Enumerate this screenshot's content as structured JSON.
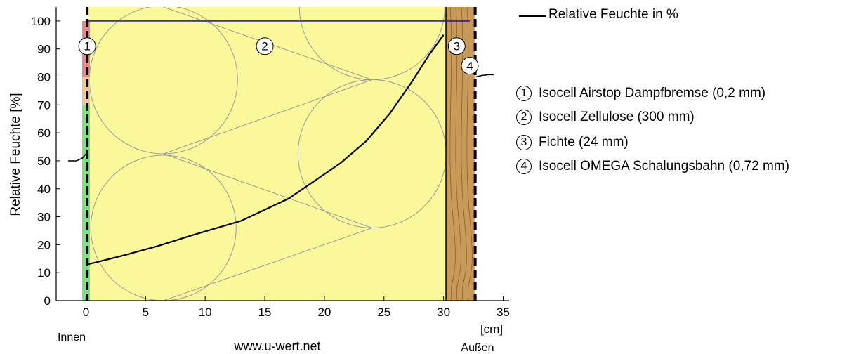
{
  "chart_data": {
    "type": "line",
    "title": "",
    "xlabel": "[cm]",
    "ylabel": "Relative Feuchte [%]",
    "xlim": [
      -2.5,
      35.5
    ],
    "ylim": [
      0,
      105
    ],
    "x_ticks": [
      0,
      5,
      10,
      15,
      20,
      25,
      30,
      35
    ],
    "y_ticks": [
      0,
      10,
      20,
      30,
      40,
      50,
      60,
      70,
      80,
      90,
      100
    ],
    "series": [
      {
        "name": "Relative Feuchte in %",
        "color": "#000000",
        "x": [
          0.2,
          3,
          6,
          9,
          13,
          17,
          21.3,
          23.5,
          25.5,
          27.3,
          28.8,
          30.0
        ],
        "y": [
          13,
          16,
          19.5,
          23.5,
          28.5,
          36.5,
          49,
          57,
          67,
          78,
          88,
          95
        ]
      }
    ],
    "inside_stub": {
      "x": [
        -1.5,
        -0.8,
        -0.3,
        0.0
      ],
      "y": [
        50,
        50,
        51,
        52.5
      ]
    },
    "outside_stub": {
      "x": [
        32.7,
        33.2,
        33.8,
        34.2
      ],
      "y": [
        80,
        80.5,
        80.8,
        80.8
      ]
    },
    "saturation_line": {
      "y": 100,
      "x": [
        0.2,
        32.2
      ],
      "color": "#1a1adc"
    },
    "layers": [
      {
        "id": "1",
        "name": "Isocell Airstop Dampfbremse (0,2 mm)",
        "x_range": [
          0,
          0.2
        ],
        "label_x": 0.1,
        "label_y": 91
      },
      {
        "id": "2",
        "name": "Isocell Zellulose (300 mm)",
        "x_range": [
          0.2,
          30.2
        ],
        "label_x": 15,
        "label_y": 91,
        "color": "#fbf89c"
      },
      {
        "id": "3",
        "name": "Fichte (24 mm)",
        "x_range": [
          30.2,
          32.6
        ],
        "label_x": 31.1,
        "label_y": 91,
        "color": "#c89a5a"
      },
      {
        "id": "4",
        "name": "Isocell OMEGA Schalungsbahn (0,72 mm)",
        "x_range": [
          32.6,
          32.7
        ],
        "label_x": 32.2,
        "label_y": 84
      }
    ],
    "comfort_bar": [
      {
        "from": 0,
        "to": 70,
        "color": "#7fe27f"
      },
      {
        "from": 70,
        "to": 80,
        "color": "#f0c890"
      },
      {
        "from": 80,
        "to": 100,
        "color": "#e88888"
      }
    ],
    "grid": false
  },
  "labels": {
    "inside": "Innen",
    "outside": "Außen",
    "website": "www.u-wert.net",
    "unit": "[cm]"
  },
  "legend": {
    "series_label": "Relative Feuchte in %",
    "materials": [
      {
        "num": "1",
        "text": "Isocell Airstop Dampfbremse (0,2 mm)"
      },
      {
        "num": "2",
        "text": "Isocell Zellulose (300 mm)"
      },
      {
        "num": "3",
        "text": "Fichte (24 mm)"
      },
      {
        "num": "4",
        "text": "Isocell OMEGA Schalungsbahn (0,72 mm)"
      }
    ]
  }
}
